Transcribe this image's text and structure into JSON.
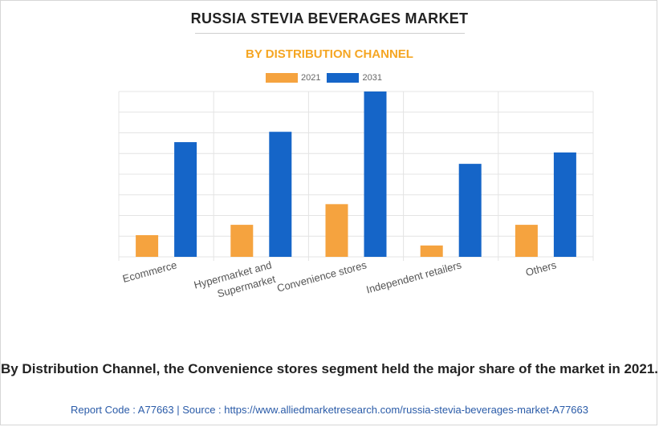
{
  "header": {
    "title": "RUSSIA STEVIA BEVERAGES MARKET",
    "subtitle": "BY DISTRIBUTION CHANNEL"
  },
  "colors": {
    "series_2021": "#f5a33f",
    "series_2031": "#1565c8",
    "grid": "#e4e4e4"
  },
  "chart_data": {
    "type": "bar",
    "title": "BY DISTRIBUTION CHANNEL",
    "categories": [
      "Ecommerce",
      "Hypermarket and Supermarket",
      "Convenience stores",
      "Independent retailers",
      "Others"
    ],
    "category_lines": [
      [
        "Ecommerce"
      ],
      [
        "Hypermarket and",
        "Supermarket"
      ],
      [
        "Convenience stores"
      ],
      [
        "Independent retailers"
      ],
      [
        "Others"
      ]
    ],
    "series": [
      {
        "name": "2021",
        "values": [
          2.1,
          3.1,
          5.1,
          1.1,
          3.1
        ]
      },
      {
        "name": "2031",
        "values": [
          11.1,
          12.1,
          16.0,
          9.0,
          10.1
        ]
      }
    ],
    "ylim": [
      0,
      16
    ],
    "y_gridlines": 8,
    "xlabel": "",
    "ylabel": "",
    "legend_position": "top-center",
    "grid": true
  },
  "footer": {
    "caption": "By Distribution Channel, the Convenience stores segment held the major share of the market in 2021.",
    "source": "Report Code : A77663  |  Source : https://www.alliedmarketresearch.com/russia-stevia-beverages-market-A77663"
  }
}
